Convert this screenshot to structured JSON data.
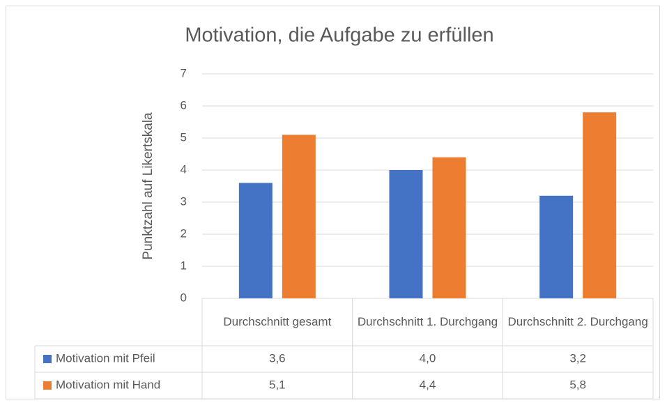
{
  "chart_data": {
    "type": "bar",
    "title": "Motivation, die Aufgabe zu erfüllen",
    "y_label": "Punktzahl auf Likertskala",
    "categories": [
      "Durchschnitt gesamt",
      "Durchschnitt 1. Durchgang",
      "Durchschnitt 2. Durchgang"
    ],
    "series": [
      {
        "name": "Motivation mit Pfeil",
        "color": "#4472c4",
        "values": [
          3.6,
          4.0,
          3.2
        ],
        "value_labels": [
          "3,6",
          "4,0",
          "3,2"
        ]
      },
      {
        "name": "Motivation mit Hand",
        "color": "#ed7d31",
        "values": [
          5.1,
          4.4,
          5.8
        ],
        "value_labels": [
          "5,1",
          "4,4",
          "5,8"
        ]
      }
    ],
    "ylim": [
      0,
      7
    ],
    "yticks": [
      0,
      1,
      2,
      3,
      4,
      5,
      6,
      7
    ],
    "grid": true,
    "data_table": true
  }
}
